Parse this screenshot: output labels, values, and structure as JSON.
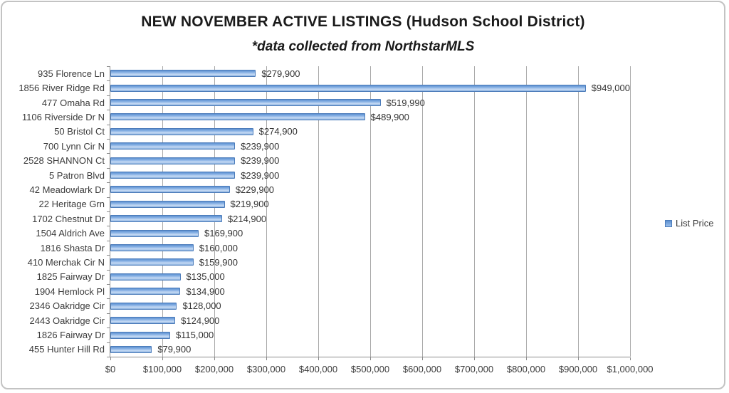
{
  "title": "NEW NOVEMBER ACTIVE LISTINGS (Hudson School District)",
  "subtitle": "*data collected from NorthstarMLS",
  "legend": {
    "label": "List Price",
    "color": "#6d9cd8",
    "position": "right"
  },
  "colors": {
    "bar_fill": "#89b2e5",
    "bar_border": "#4c7cba",
    "gridline": "#aaaaaa",
    "axis": "#8c8c8c"
  },
  "chart_data": {
    "type": "bar",
    "orientation": "horizontal",
    "title": "NEW NOVEMBER ACTIVE LISTINGS (Hudson School District)",
    "subtitle": "*data collected from NorthstarMLS",
    "xlabel": "",
    "ylabel": "",
    "grid": true,
    "legend_position": "right",
    "xlim": [
      0,
      1000000
    ],
    "x_tick_step": 100000,
    "x_ticks": [
      "$0",
      "$100,000",
      "$200,000",
      "$300,000",
      "$400,000",
      "$500,000",
      "$600,000",
      "$700,000",
      "$800,000",
      "$900,000",
      "$1,000,000"
    ],
    "categories": [
      "935 Florence Ln",
      "1856 River Ridge Rd",
      "477 Omaha Rd",
      "1106 Riverside Dr N",
      "50 Bristol Ct",
      "700 Lynn Cir N",
      "2528 SHANNON Ct",
      "5 Patron Blvd",
      "42 Meadowlark Dr",
      "22 Heritage Grn",
      "1702 Chestnut Dr",
      "1504 Aldrich Ave",
      "1816 Shasta Dr",
      "410 Merchak Cir N",
      "1825 Fairway Dr",
      "1904 Hemlock Pl",
      "2346 Oakridge Cir",
      "2443 Oakridge Cir",
      "1826 Fairway Dr",
      "455 Hunter Hill Rd"
    ],
    "series": [
      {
        "name": "List Price",
        "values": [
          279900,
          949000,
          519990,
          489900,
          274900,
          239900,
          239900,
          239900,
          229900,
          219900,
          214900,
          169900,
          160000,
          159900,
          135000,
          134900,
          128000,
          124900,
          115000,
          79900
        ],
        "labels": [
          "$279,900",
          "$949,000",
          "$519,990",
          "$489,900",
          "$274,900",
          "$239,900",
          "$239,900",
          "$239,900",
          "$229,900",
          "$219,900",
          "$214,900",
          "$169,900",
          "$160,000",
          "$159,900",
          "$135,000",
          "$134,900",
          "$128,000",
          "$124,900",
          "$115,000",
          "$79,900"
        ]
      }
    ]
  }
}
